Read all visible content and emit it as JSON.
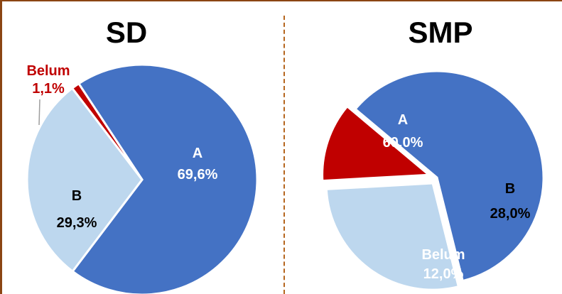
{
  "chart_data": [
    {
      "type": "pie",
      "title": "SD",
      "slices": [
        {
          "category": "A",
          "value": 69.6,
          "display": "69,6%",
          "color": "#4472C4",
          "label_color": "#FFFFFF"
        },
        {
          "category": "B",
          "value": 29.3,
          "display": "29,3%",
          "color": "#BDD7EE",
          "label_color": "#000000"
        },
        {
          "category": "Belum",
          "value": 1.1,
          "display": "1,1%",
          "color": "#C00000",
          "label_color": "#C00000"
        }
      ]
    },
    {
      "type": "pie",
      "title": "SMP",
      "slices": [
        {
          "category": "A",
          "value": 60.0,
          "display": "60,0%",
          "color": "#4472C4",
          "label_color": "#FFFFFF"
        },
        {
          "category": "B",
          "value": 28.0,
          "display": "28,0%",
          "color": "#BDD7EE",
          "label_color": "#000000"
        },
        {
          "category": "Belum",
          "value": 12.0,
          "display": "12,0%",
          "color": "#C00000",
          "label_color": "#FFFFFF"
        }
      ]
    }
  ]
}
